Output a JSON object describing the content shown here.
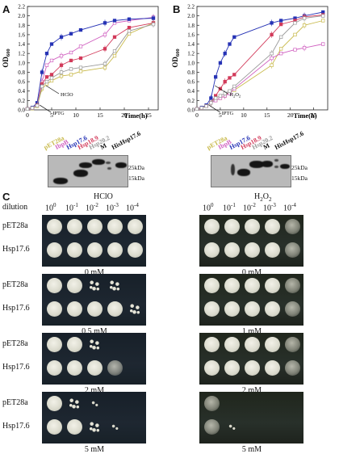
{
  "panels": {
    "a": "A",
    "b": "B",
    "c": "C"
  },
  "charts": [
    {
      "id": "A",
      "chart_data": {
        "type": "line",
        "xlabel": "Time(h)",
        "ylabel": "OD600",
        "xlim": [
          0,
          27
        ],
        "ylim": [
          0,
          2.2
        ],
        "xticks": [
          0,
          5,
          10,
          15,
          20,
          25
        ],
        "yticks": [
          0.0,
          0.2,
          0.4,
          0.6,
          0.8,
          1.0,
          1.2,
          1.4,
          1.6,
          1.8,
          2.0,
          2.2
        ],
        "annotations": [
          "HClO",
          "IPTG"
        ],
        "series": [
          {
            "key": "pET28a",
            "color": "#c8b94a",
            "x": [
              0,
              1,
              2,
              3,
              4,
              5,
              7,
              9,
              11,
              16,
              18,
              21,
              26
            ],
            "y": [
              0.02,
              0.03,
              0.08,
              0.45,
              0.55,
              0.62,
              0.72,
              0.75,
              0.82,
              0.9,
              1.15,
              1.62,
              1.85
            ]
          },
          {
            "key": "IbpB",
            "color": "#d060c0",
            "x": [
              0,
              1,
              2,
              3,
              4,
              5,
              7,
              9,
              11,
              16,
              18,
              21,
              26
            ],
            "y": [
              0.02,
              0.04,
              0.1,
              0.6,
              0.95,
              1.05,
              1.15,
              1.22,
              1.35,
              1.6,
              1.85,
              1.9,
              1.97
            ]
          },
          {
            "key": "Hsp17.6",
            "color": "#2633b5",
            "x": [
              0,
              1,
              2,
              3,
              4,
              5,
              7,
              9,
              11,
              16,
              18,
              21,
              26
            ],
            "y": [
              0.02,
              0.05,
              0.15,
              0.8,
              1.2,
              1.4,
              1.55,
              1.62,
              1.7,
              1.85,
              1.9,
              1.93,
              1.95
            ]
          },
          {
            "key": "Hsp18.9",
            "color": "#d23a5a",
            "x": [
              0,
              1,
              2,
              3,
              4,
              5,
              7,
              9,
              11,
              16,
              18,
              21,
              26
            ],
            "y": [
              0.02,
              0.04,
              0.1,
              0.55,
              0.7,
              0.75,
              0.95,
              1.05,
              1.1,
              1.3,
              1.55,
              1.75,
              1.85
            ]
          },
          {
            "key": "Hsp20.2",
            "color": "#999999",
            "x": [
              0,
              1,
              2,
              3,
              4,
              5,
              7,
              9,
              11,
              16,
              18,
              21,
              26
            ],
            "y": [
              0.02,
              0.04,
              0.09,
              0.5,
              0.6,
              0.68,
              0.8,
              0.87,
              0.9,
              0.98,
              1.25,
              1.68,
              1.82
            ]
          }
        ]
      }
    },
    {
      "id": "B",
      "chart_data": {
        "type": "line",
        "xlabel": "Time(h)",
        "ylabel": "OD600",
        "xlim": [
          0,
          28
        ],
        "ylim": [
          0,
          2.2
        ],
        "xticks": [
          0,
          5,
          10,
          15,
          20,
          25
        ],
        "yticks": [
          0.0,
          0.2,
          0.4,
          0.6,
          0.8,
          1.0,
          1.2,
          1.4,
          1.6,
          1.8,
          2.0,
          2.2
        ],
        "annotations": [
          "H2O2",
          "IPTG"
        ],
        "series": [
          {
            "key": "pET28a",
            "color": "#c8b94a",
            "x": [
              0,
              1,
              2,
              3,
              4,
              5,
              6,
              7,
              8,
              16,
              18,
              21,
              23,
              27
            ],
            "y": [
              0.02,
              0.04,
              0.08,
              0.15,
              0.2,
              0.25,
              0.3,
              0.38,
              0.42,
              0.95,
              1.3,
              1.6,
              1.8,
              1.9
            ]
          },
          {
            "key": "IbpB",
            "color": "#d060c0",
            "x": [
              0,
              1,
              2,
              3,
              4,
              5,
              6,
              7,
              8,
              16,
              18,
              21,
              23,
              27
            ],
            "y": [
              0.02,
              0.04,
              0.08,
              0.15,
              0.2,
              0.25,
              0.3,
              0.35,
              0.45,
              1.1,
              1.2,
              1.28,
              1.32,
              1.4
            ]
          },
          {
            "key": "Hsp17.6",
            "color": "#2633b5",
            "x": [
              0,
              1,
              2,
              3,
              4,
              5,
              6,
              7,
              8,
              16,
              18,
              21,
              23,
              27
            ],
            "y": [
              0.02,
              0.05,
              0.1,
              0.25,
              0.7,
              1.0,
              1.2,
              1.4,
              1.55,
              1.85,
              1.9,
              1.95,
              2.0,
              2.08
            ]
          },
          {
            "key": "Hsp18.9",
            "color": "#d23a5a",
            "x": [
              0,
              1,
              2,
              3,
              4,
              5,
              6,
              7,
              8,
              16,
              18,
              21,
              23,
              27
            ],
            "y": [
              0.02,
              0.04,
              0.08,
              0.15,
              0.3,
              0.45,
              0.6,
              0.68,
              0.75,
              1.6,
              1.82,
              1.9,
              1.98,
              2.02
            ]
          },
          {
            "key": "Hsp20.2",
            "color": "#999999",
            "x": [
              0,
              1,
              2,
              3,
              4,
              5,
              6,
              7,
              8,
              16,
              18,
              21,
              23,
              27
            ],
            "y": [
              0.02,
              0.04,
              0.08,
              0.15,
              0.25,
              0.3,
              0.35,
              0.4,
              0.5,
              1.2,
              1.55,
              1.85,
              1.95,
              2.0
            ]
          }
        ]
      }
    }
  ],
  "blots": [
    {
      "labels": [
        {
          "t": "pET28a",
          "c": "#c8b94a"
        },
        {
          "t": "IbpB",
          "c": "#d060c0"
        },
        {
          "t": "Hsp17.6",
          "c": "#2633b5"
        },
        {
          "t": "Hsp18.9",
          "c": "#d23a5a"
        },
        {
          "t": "Hsp20.2",
          "c": "#999999"
        },
        {
          "t": "M",
          "c": "#111111"
        },
        {
          "t": "HisHsp17.6",
          "c": "#111111"
        }
      ],
      "markers": [
        "25kDa",
        "15kDa"
      ]
    },
    {
      "labels": [
        {
          "t": "pET28a",
          "c": "#c8b94a"
        },
        {
          "t": "IbpB",
          "c": "#d060c0"
        },
        {
          "t": "Hsp17.6",
          "c": "#2633b5"
        },
        {
          "t": "Hsp18.9",
          "c": "#d23a5a"
        },
        {
          "t": "Hsp20.2",
          "c": "#999999"
        },
        {
          "t": "M",
          "c": "#111111"
        },
        {
          "t": "HisHsp17.6",
          "c": "#111111"
        }
      ],
      "markers": [
        "25kDa",
        "15kDa"
      ]
    }
  ],
  "spot_assay": {
    "dilution_label": "dilution",
    "dilutions_hclo": [
      "10",
      "10",
      "10",
      "10",
      "10"
    ],
    "exps_hclo": [
      "0",
      "-1",
      "-2",
      "-3",
      "-4"
    ],
    "dilutions_h2o2": [
      "10",
      "10",
      "10",
      "10",
      "10"
    ],
    "exps_h2o2": [
      "0",
      "-1",
      "-2",
      "-3",
      "-4"
    ],
    "hclo_title": "HClO",
    "h2o2_title": "H2O2",
    "strains": [
      "pET28a",
      "Hsp17.6"
    ],
    "hclo_conc": [
      "0 mM",
      "0.5 mM",
      "2 mM",
      "5 mM"
    ],
    "h2o2_conc": [
      "0 mM",
      "1 mM",
      "2 mM",
      "5 mM"
    ],
    "hclo_growth": [
      [
        [
          "full",
          "full",
          "full",
          "full",
          "full"
        ],
        [
          "full",
          "full",
          "full",
          "full",
          "full"
        ]
      ],
      [
        [
          "full",
          "full",
          "few",
          "few",
          "none"
        ],
        [
          "full",
          "full",
          "full",
          "full",
          "few"
        ]
      ],
      [
        [
          "full",
          "full",
          "few",
          "none",
          "none"
        ],
        [
          "full",
          "full",
          "full",
          "part",
          "none"
        ]
      ],
      [
        [
          "full",
          "few",
          "trace",
          "none",
          "none"
        ],
        [
          "full",
          "full",
          "few",
          "trace",
          "none"
        ]
      ]
    ],
    "h2o2_growth": [
      [
        [
          "full",
          "full",
          "full",
          "full",
          "part"
        ],
        [
          "full",
          "full",
          "full",
          "full",
          "part"
        ]
      ],
      [
        [
          "full",
          "full",
          "full",
          "full",
          "part"
        ],
        [
          "full",
          "full",
          "full",
          "full",
          "part"
        ]
      ],
      [
        [
          "full",
          "full",
          "full",
          "full",
          "part"
        ],
        [
          "full",
          "full",
          "full",
          "full",
          "part"
        ]
      ],
      [
        [
          "part",
          "none",
          "none",
          "none",
          "none"
        ],
        [
          "part",
          "trace",
          "none",
          "none",
          "none"
        ]
      ]
    ]
  }
}
